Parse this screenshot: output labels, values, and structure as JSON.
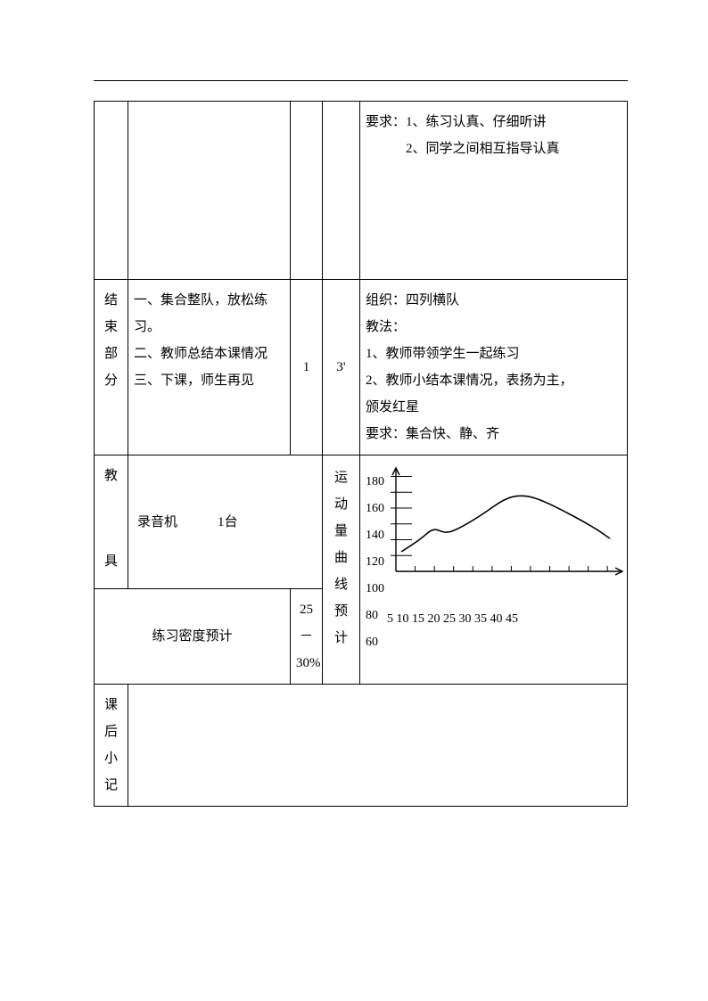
{
  "row1": {
    "col5_lines": [
      "要求：1、练习认真、仔细听讲",
      "　　　2、同学之间相互指导认真"
    ]
  },
  "row2": {
    "label_chars": [
      "结",
      "束",
      "部",
      "分"
    ],
    "content_lines": [
      "一、集合整队，放松练习。",
      "二、教师总结本课情况",
      "三、下课，师生再见"
    ],
    "col3": "1",
    "col4": "3'",
    "col5_lines": [
      "组织：四列横队",
      "教法：",
      "1、教师带领学生一起练习",
      "2、教师小结本课情况，表扬为主，",
      "颁发红星",
      "要求：集合快、静、齐"
    ]
  },
  "row3": {
    "left_label_chars": [
      "教",
      "",
      "",
      "",
      "具"
    ],
    "equipment": "录音机　　　1台",
    "chart_label_chars": [
      "运",
      "动",
      "量",
      "曲",
      "线",
      "预",
      "计"
    ],
    "density_label": "练习密度预计",
    "density_value": "25－30%"
  },
  "chart": {
    "y_ticks": [
      180,
      160,
      140,
      120,
      100,
      80,
      60
    ],
    "x_labels": "5 10 15 20 25 30 35 40 45",
    "y_min": 100,
    "y_max": 190,
    "axis_color": "#000000",
    "curve_color": "#000000",
    "curve_points": [
      [
        0,
        118
      ],
      [
        22,
        130
      ],
      [
        35,
        140
      ],
      [
        48,
        135
      ],
      [
        60,
        138
      ],
      [
        85,
        150
      ],
      [
        115,
        168
      ],
      [
        135,
        170
      ],
      [
        155,
        165
      ],
      [
        190,
        150
      ],
      [
        215,
        138
      ],
      [
        228,
        130
      ]
    ],
    "x_tick_count": 11
  },
  "row4": {
    "label_chars": [
      "课",
      "后",
      "小",
      "记"
    ]
  }
}
